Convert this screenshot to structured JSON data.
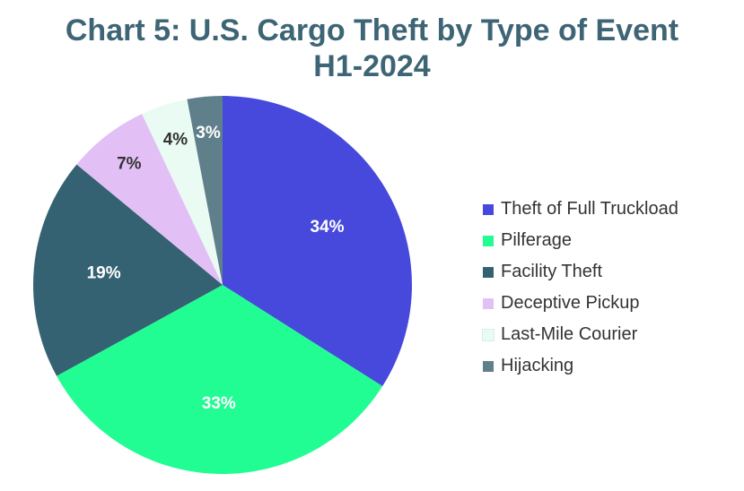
{
  "chart_data": {
    "type": "pie",
    "title": "Chart 5: U.S. Cargo Theft by Type of Event",
    "subtitle": "H1-2024",
    "legend_position": "right",
    "categories": [
      "Theft of Full Truckload",
      "Pilferage",
      "Facility Theft",
      "Deceptive Pickup",
      "Last-Mile Courier",
      "Hijacking"
    ],
    "values": [
      34,
      33,
      19,
      7,
      4,
      3
    ],
    "labels": [
      "34%",
      "33%",
      "19%",
      "7%",
      "4%",
      "3%"
    ],
    "colors": [
      "#4649dc",
      "#21fc93",
      "#356272",
      "#e2c0f6",
      "#e9fbf3",
      "#5f7f8a"
    ],
    "label_colors": [
      "#ffffff",
      "#ffffff",
      "#ffffff",
      "#333333",
      "#333333",
      "#ffffff"
    ]
  }
}
